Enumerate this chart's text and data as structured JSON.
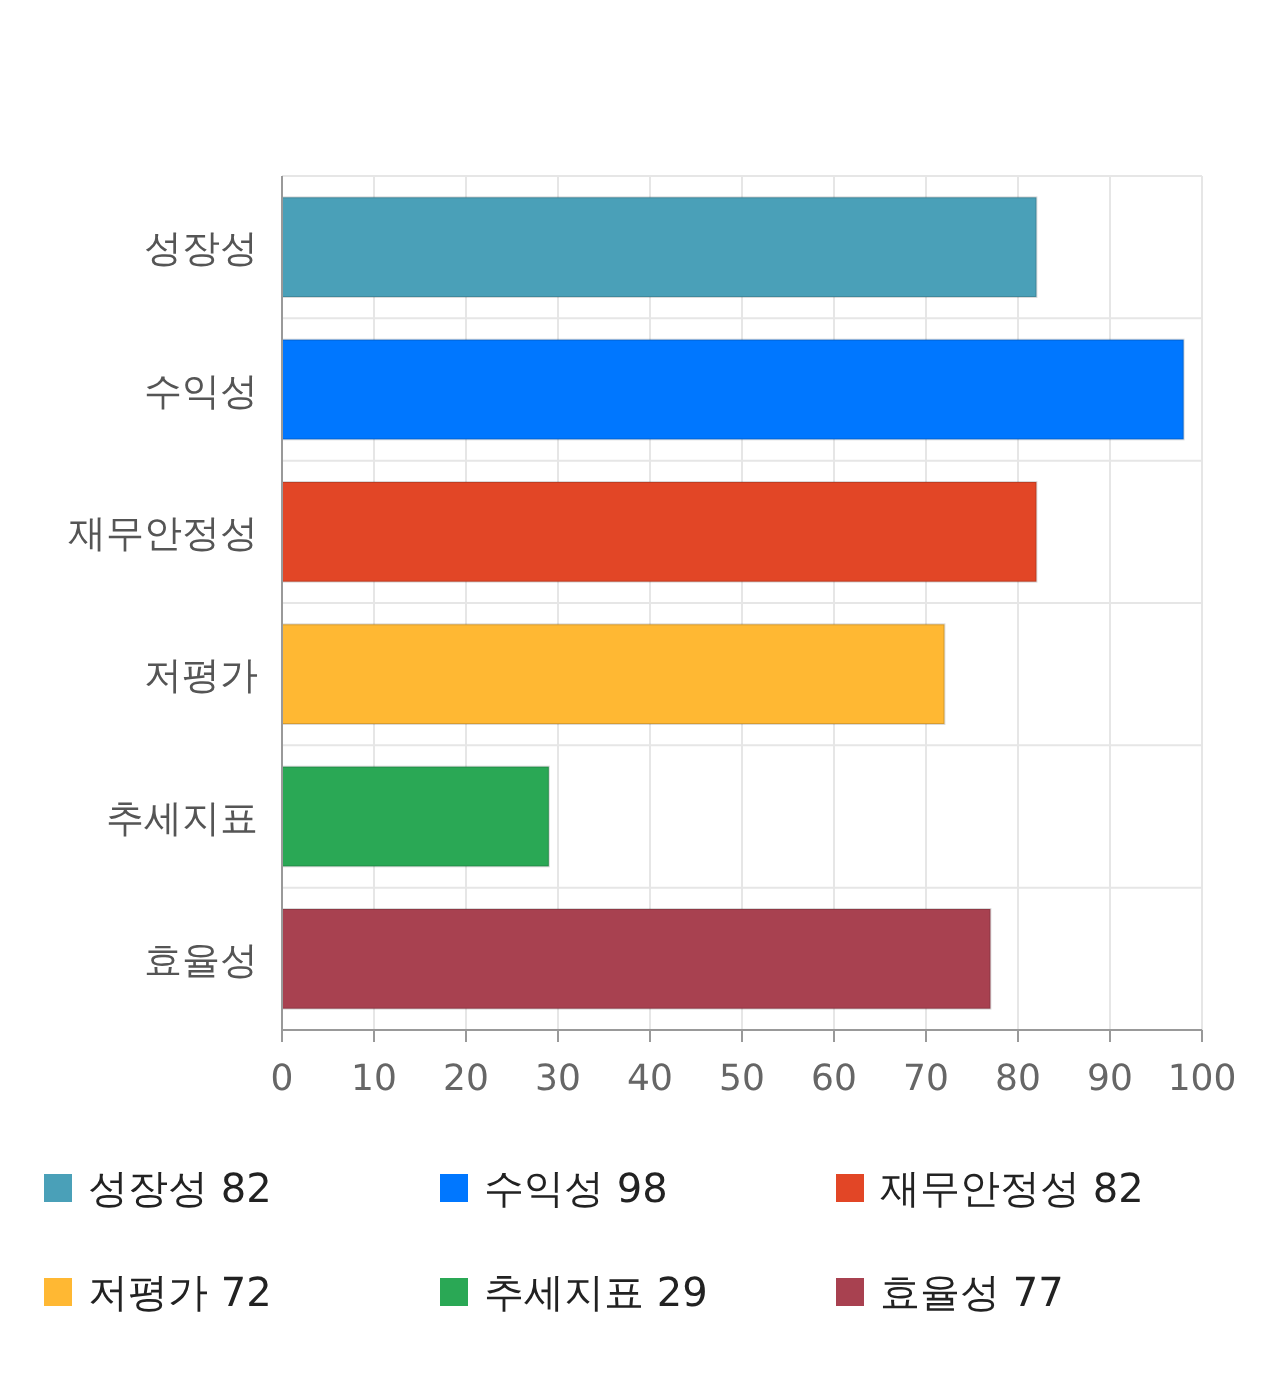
{
  "chart_data": {
    "type": "bar",
    "orientation": "horizontal",
    "categories": [
      "성장성",
      "수익성",
      "재무안정성",
      "저평가",
      "추세지표",
      "효율성"
    ],
    "series": [
      {
        "name": "성장성 82",
        "color": "#4aa0b8",
        "values": [
          82,
          null,
          null,
          null,
          null,
          null
        ]
      },
      {
        "name": "수익성 98",
        "color": "#0077ff",
        "values": [
          null,
          98,
          null,
          null,
          null,
          null
        ]
      },
      {
        "name": "재무안정성 82",
        "color": "#e24626",
        "values": [
          null,
          null,
          82,
          null,
          null,
          null
        ]
      },
      {
        "name": "저평가 72",
        "color": "#ffb833",
        "values": [
          null,
          null,
          null,
          72,
          null,
          null
        ]
      },
      {
        "name": "추세지표 29",
        "color": "#2aa855",
        "values": [
          null,
          null,
          null,
          null,
          29,
          null
        ]
      },
      {
        "name": "효율성 77",
        "color": "#a84150",
        "values": [
          null,
          null,
          null,
          null,
          null,
          77
        ]
      }
    ],
    "xlim": [
      0,
      100
    ],
    "xticks": [
      0,
      10,
      20,
      30,
      40,
      50,
      60,
      70,
      80,
      90,
      100
    ],
    "grid": true,
    "legend": "bottom"
  }
}
